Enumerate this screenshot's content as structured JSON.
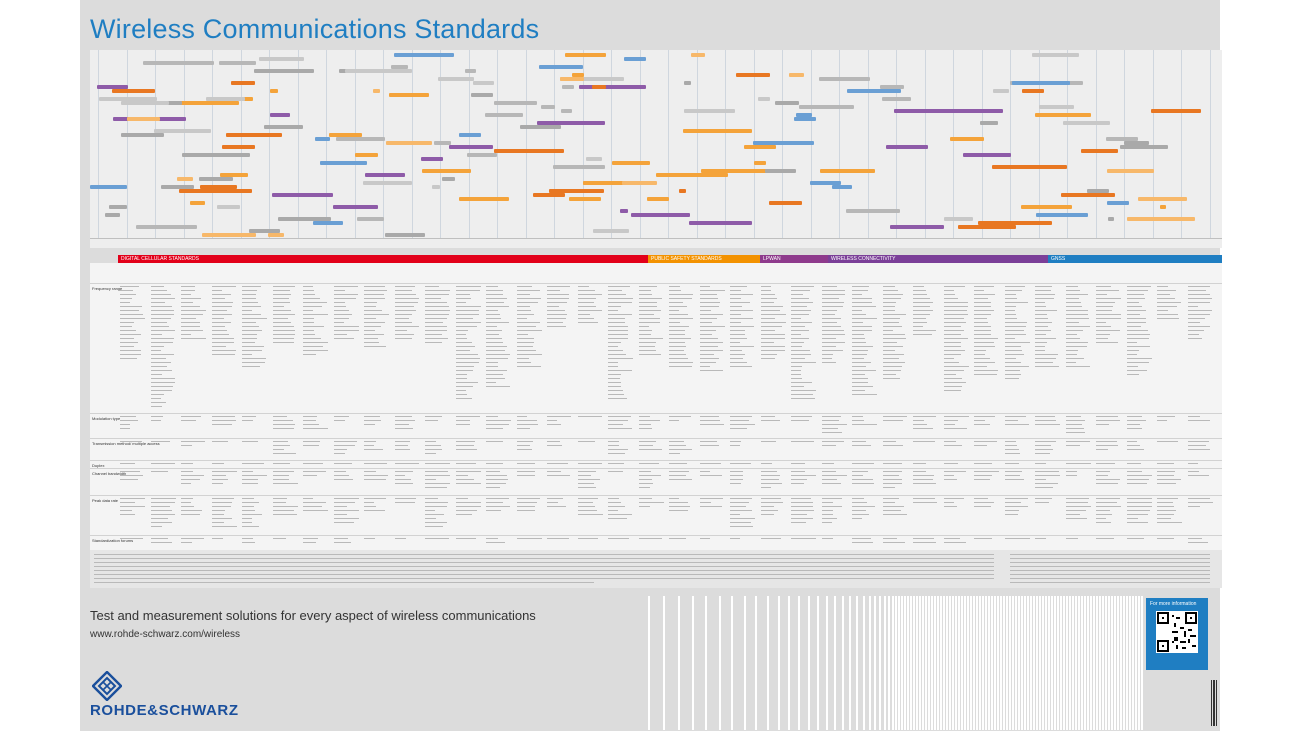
{
  "poster": {
    "title": "Wireless Communications Standards",
    "tagline": "Test and measurement solutions for every aspect of wireless communications",
    "url": "www.rohde-schwarz.com/wireless",
    "qr_caption": "For more information",
    "brand": "ROHDE&SCHWARZ"
  },
  "categories": [
    {
      "label": "DIGITAL CELLULAR STANDARDS",
      "color": "#e2001a"
    },
    {
      "label": "PUBLIC SAFETY STANDARDS",
      "color": "#f39200"
    },
    {
      "label": "LPWAN",
      "color": "#8e3a8c"
    },
    {
      "label": "WIRELESS CONNECTIVITY",
      "color": "#7b3f98"
    },
    {
      "label": "GNSS",
      "color": "#1f7ec2"
    }
  ],
  "table_rows": [
    "Frequency range",
    "Modulation type",
    "Transmission method/ multiple access",
    "Duplex",
    "Channel bandwidth",
    "Peak data rate",
    "Standardization forums"
  ],
  "colors": {
    "accent": "#1f7ec2",
    "poster_bg": "#dcdcdc",
    "chart_bg": "#eeeeee",
    "brand": "#1a4f9c"
  },
  "icons": [
    "rohde-schwarz-logo-icon",
    "qr-code-icon"
  ]
}
